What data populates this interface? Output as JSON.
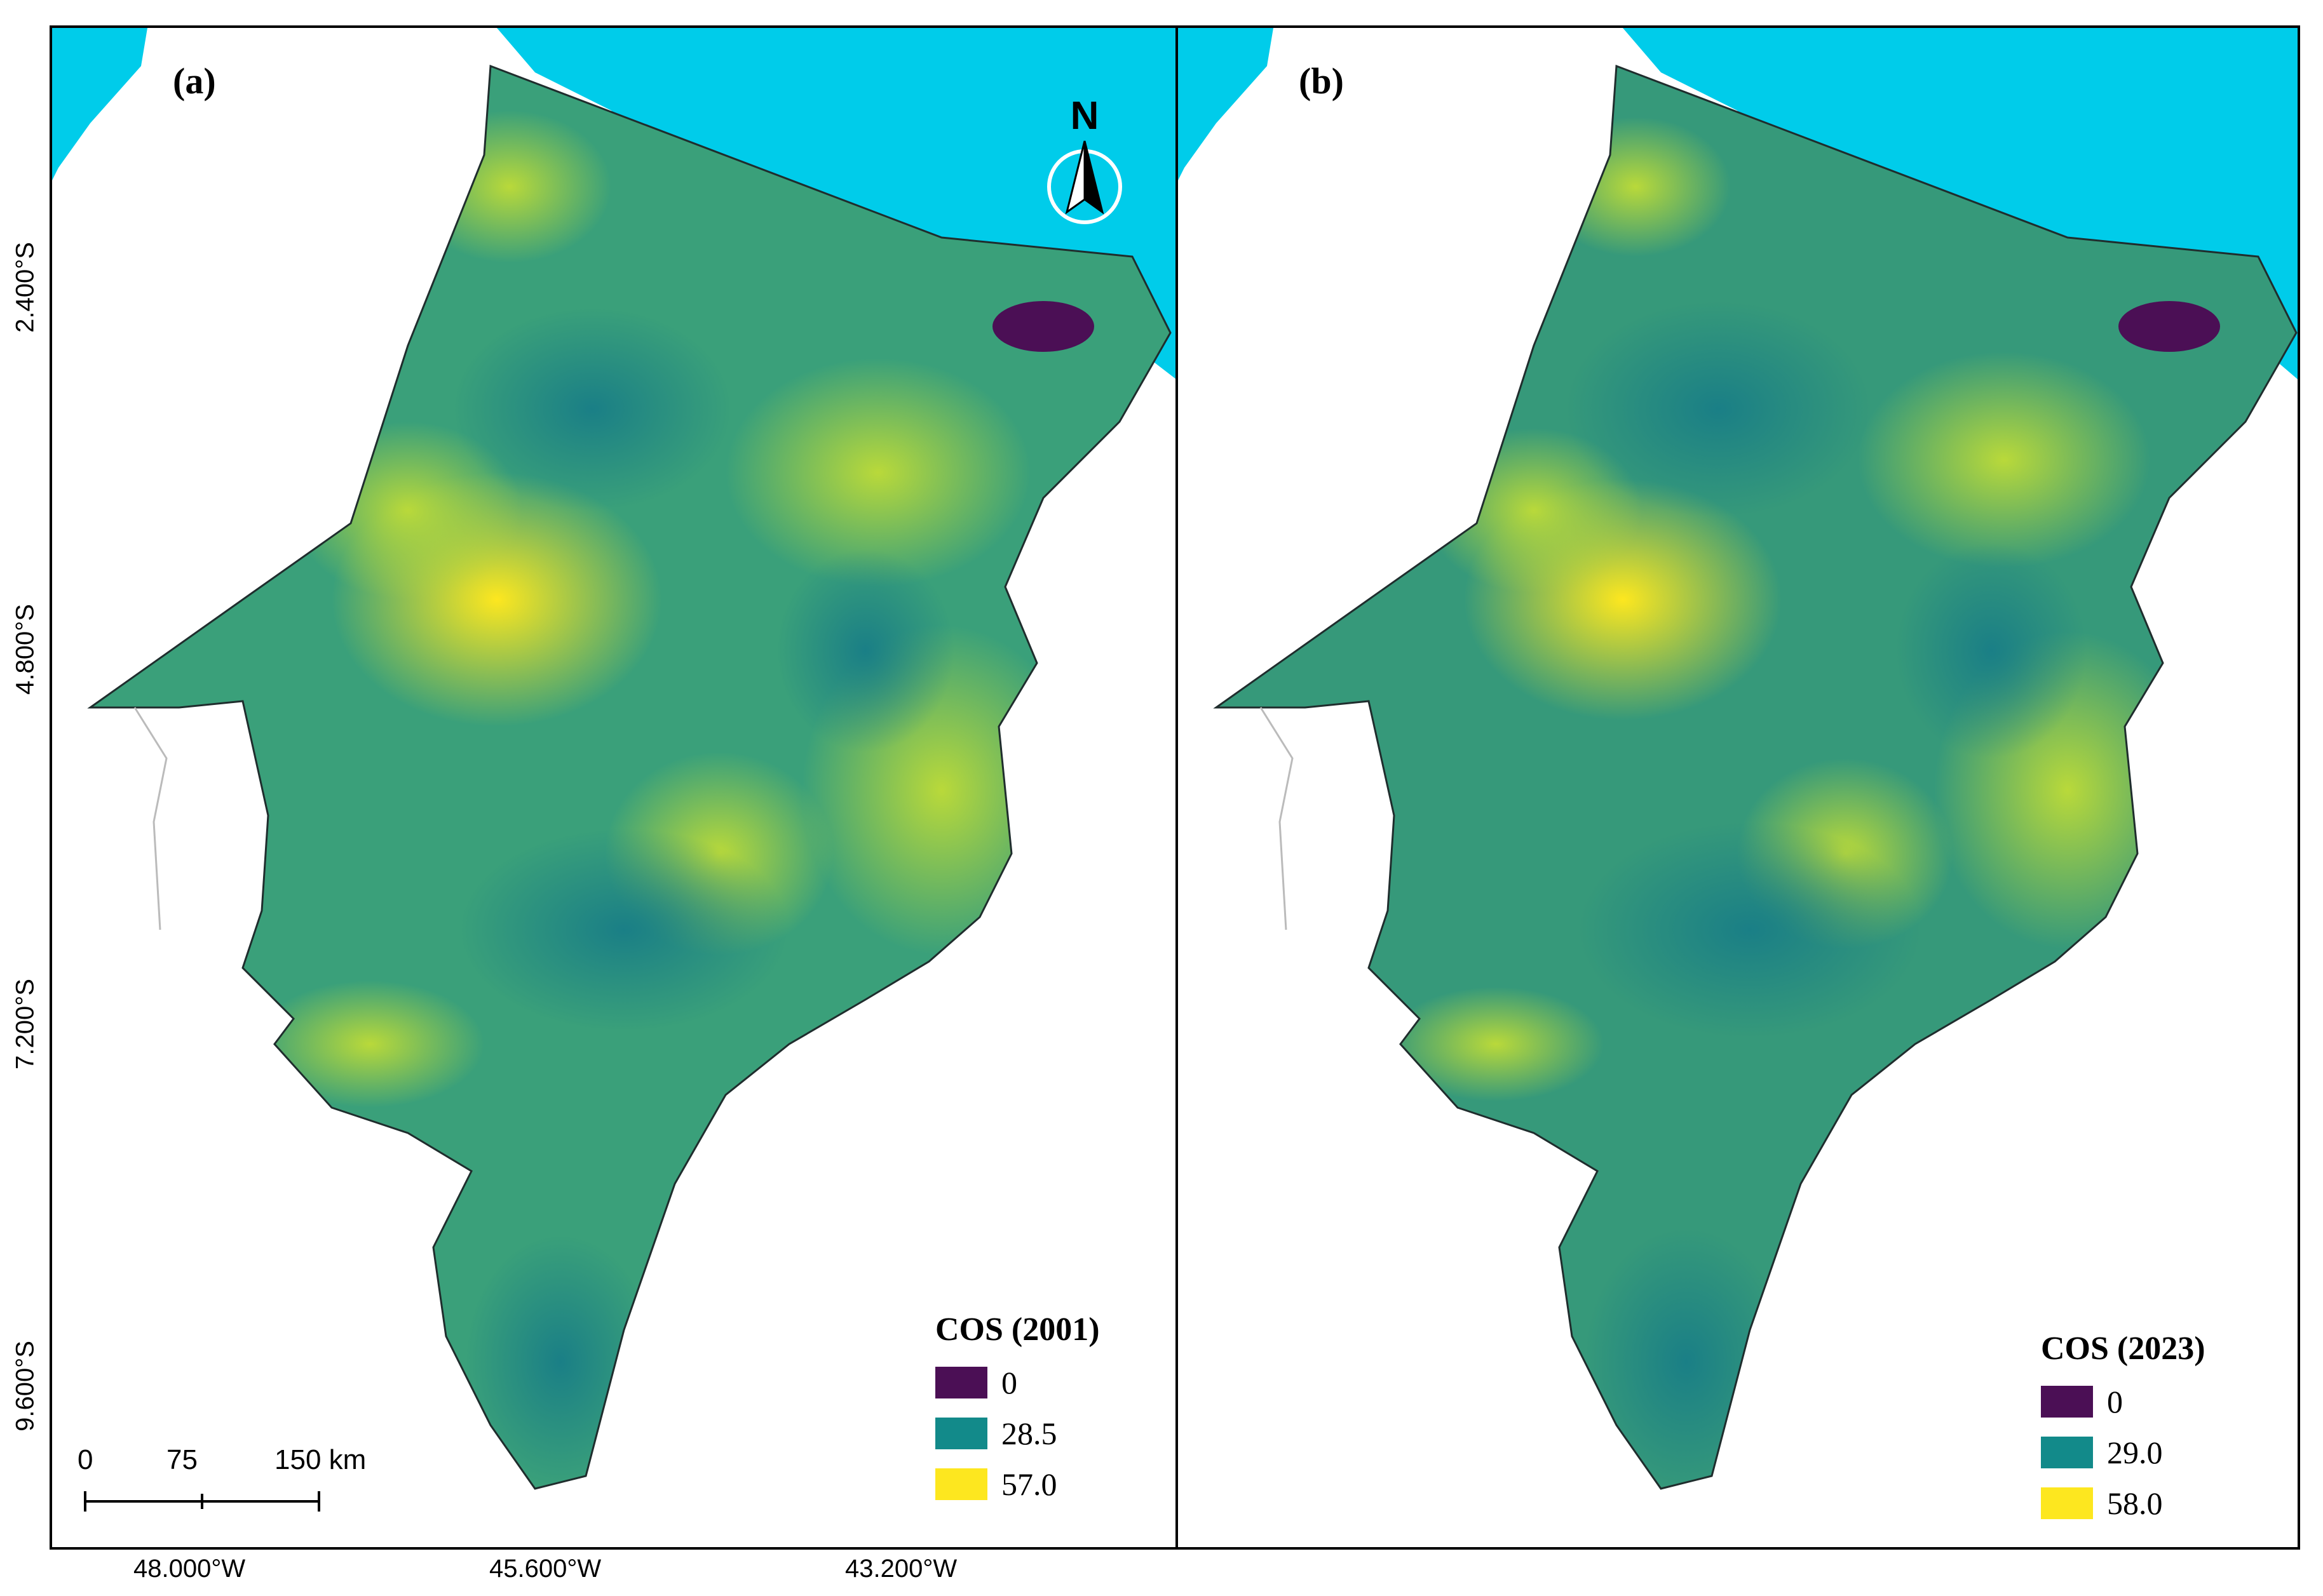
{
  "panels": [
    {
      "label": "(a)",
      "legend_title": "COS (2001)",
      "legend_values": [
        "0",
        "28.5",
        "57.0"
      ]
    },
    {
      "label": "(b)",
      "legend_title": "COS (2023)",
      "legend_values": [
        "0",
        "29.0",
        "58.0"
      ]
    }
  ],
  "legend_colors": [
    "#4b0f55",
    "#128a8a",
    "#fde71f"
  ],
  "north_arrow": {
    "letter": "N"
  },
  "scale_bar": {
    "ticks": [
      "0",
      "75",
      "150 km"
    ]
  },
  "latitude_labels": [
    "2.400°S",
    "4.800°S",
    "7.200°S",
    "9.600°S"
  ],
  "longitude_labels": [
    "48.000°W",
    "45.600°W",
    "43.200°W"
  ],
  "colors": {
    "ocean": "#00ccea",
    "land_base": "#3aa07a",
    "border": "#000000"
  }
}
